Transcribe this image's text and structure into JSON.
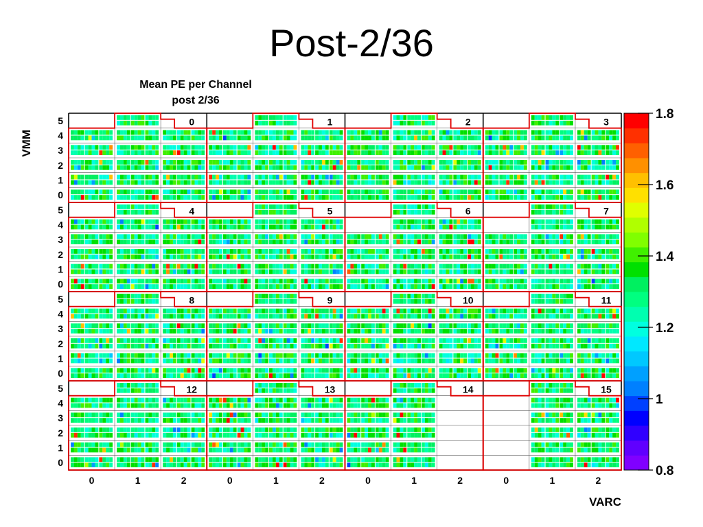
{
  "slide_title": "Post-2/36",
  "chart_data": {
    "type": "heatmap",
    "title": "Mean PE per Channel",
    "subtitle": "post 2/36",
    "xlabel": "VARC",
    "ylabel": "VMM",
    "x_tick_labels": [
      "0",
      "1",
      "2",
      "0",
      "1",
      "2",
      "0",
      "1",
      "2",
      "0",
      "1",
      "2"
    ],
    "y_tick_labels": [
      "0",
      "1",
      "2",
      "3",
      "4",
      "5"
    ],
    "panel_rows": 4,
    "panel_cols": 4,
    "panel_labels": [
      "0",
      "1",
      "2",
      "3",
      "4",
      "5",
      "6",
      "7",
      "8",
      "9",
      "10",
      "11",
      "12",
      "13",
      "14",
      "15"
    ],
    "empty_cells": [
      {
        "panel": 14,
        "varc": 2,
        "vmm": [
          0,
          1,
          2,
          3,
          4,
          5
        ]
      },
      {
        "panel": 15,
        "varc": 0,
        "vmm": [
          0,
          1,
          2,
          3,
          4,
          5
        ]
      },
      {
        "panel": 6,
        "varc": 0,
        "vmm": [
          4,
          5
        ]
      },
      {
        "panel": 7,
        "varc": 0,
        "vmm": [
          4,
          5
        ]
      }
    ],
    "color_scale": {
      "min": 0.8,
      "max": 1.8,
      "tick_labels": [
        "0.8",
        "1",
        "1.2",
        "1.4",
        "1.6",
        "1.8"
      ],
      "tick_values": [
        0.8,
        1.0,
        1.2,
        1.4,
        1.6,
        1.8
      ],
      "colors": [
        "#8000ff",
        "#6000ff",
        "#3000ff",
        "#0000ff",
        "#0040ff",
        "#0080ff",
        "#00a0ff",
        "#00c8ff",
        "#00e8ff",
        "#00ffe0",
        "#00ffb0",
        "#00ff80",
        "#00f060",
        "#00e000",
        "#40f000",
        "#80ff00",
        "#b0ff00",
        "#e0ff00",
        "#ffe000",
        "#ffc000",
        "#ff9000",
        "#ff6000",
        "#ff3000",
        "#ff0000"
      ]
    },
    "typical_value": 1.3,
    "value_range_observed": [
      1.0,
      1.8
    ],
    "grid": true
  }
}
